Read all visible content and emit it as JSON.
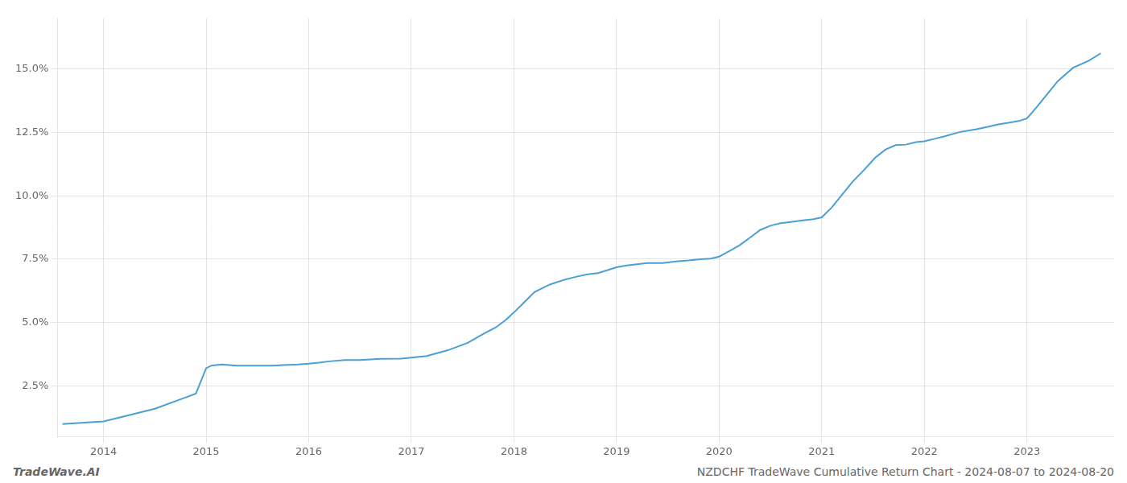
{
  "chart_data": {
    "type": "line",
    "title": "NZDCHF TradeWave Cumulative Return Chart - 2024-08-07 to 2024-08-20",
    "annotations": [
      "TradeWave.AI"
    ],
    "color": "#4a9fd4",
    "x": [
      2013.6,
      2014.0,
      2014.2,
      2014.5,
      2014.7,
      2014.9,
      2015.0,
      2015.05,
      2015.15,
      2015.3,
      2015.5,
      2015.65,
      2015.75,
      2015.9,
      2016.0,
      2016.1,
      2016.2,
      2016.35,
      2016.5,
      2016.7,
      2016.9,
      2017.0,
      2017.15,
      2017.35,
      2017.55,
      2017.7,
      2017.82,
      2017.92,
      2018.0,
      2018.1,
      2018.2,
      2018.35,
      2018.5,
      2018.62,
      2018.72,
      2018.82,
      2018.92,
      2019.0,
      2019.1,
      2019.2,
      2019.3,
      2019.45,
      2019.6,
      2019.7,
      2019.82,
      2019.92,
      2020.0,
      2020.1,
      2020.2,
      2020.3,
      2020.4,
      2020.5,
      2020.6,
      2020.7,
      2020.8,
      2020.92,
      2021.0,
      2021.1,
      2021.2,
      2021.3,
      2021.42,
      2021.52,
      2021.62,
      2021.72,
      2021.82,
      2021.92,
      2022.0,
      2022.1,
      2022.2,
      2022.35,
      2022.5,
      2022.62,
      2022.72,
      2022.82,
      2022.92,
      2023.0,
      2023.1,
      2023.2,
      2023.3,
      2023.45,
      2023.6,
      2023.72
    ],
    "values": [
      1.0,
      1.1,
      1.3,
      1.6,
      1.9,
      2.2,
      3.2,
      3.3,
      3.35,
      3.3,
      3.3,
      3.3,
      3.32,
      3.35,
      3.38,
      3.42,
      3.47,
      3.52,
      3.52,
      3.57,
      3.58,
      3.62,
      3.68,
      3.9,
      4.2,
      4.55,
      4.8,
      5.1,
      5.4,
      5.8,
      6.2,
      6.5,
      6.7,
      6.82,
      6.9,
      6.95,
      7.08,
      7.18,
      7.25,
      7.3,
      7.35,
      7.35,
      7.42,
      7.45,
      7.5,
      7.52,
      7.6,
      7.82,
      8.05,
      8.35,
      8.65,
      8.82,
      8.92,
      8.97,
      9.02,
      9.08,
      9.15,
      9.55,
      10.05,
      10.55,
      11.05,
      11.5,
      11.82,
      12.0,
      12.02,
      12.12,
      12.15,
      12.25,
      12.35,
      12.52,
      12.62,
      12.72,
      12.82,
      12.88,
      12.95,
      13.05,
      13.52,
      14.02,
      14.52,
      15.05,
      15.32,
      15.62
    ],
    "xlim": [
      2013.55,
      2023.85
    ],
    "xticks": [
      2014,
      2015,
      2016,
      2017,
      2018,
      2019,
      2020,
      2021,
      2022,
      2023
    ],
    "ylim": [
      0.5,
      17.0
    ],
    "yticks": [
      {
        "value": 2.5,
        "label": "2.5%"
      },
      {
        "value": 5.0,
        "label": "5.0%"
      },
      {
        "value": 7.5,
        "label": "7.5%"
      },
      {
        "value": 10.0,
        "label": "10.0%"
      },
      {
        "value": 12.5,
        "label": "12.5%"
      },
      {
        "value": 15.0,
        "label": "15.0%"
      }
    ],
    "grid": true
  }
}
